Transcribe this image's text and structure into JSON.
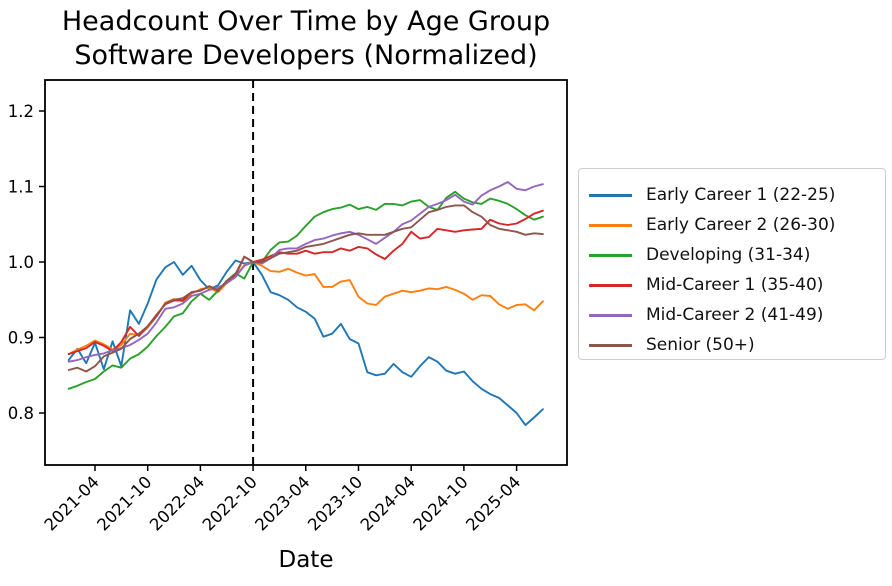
{
  "title": {
    "line1": "Headcount Over Time by Age Group",
    "line2": "Software Developers (Normalized)"
  },
  "chart_data": {
    "type": "line",
    "title": "Headcount Over Time by Age Group\nSoftware Developers (Normalized)",
    "xlabel": "Date",
    "ylabel": "",
    "grid": false,
    "legend_position": "right",
    "ylim": [
      0.73,
      1.24
    ],
    "y_ticks": [
      0.8,
      0.9,
      1.0,
      1.1,
      1.2
    ],
    "x_tick_labels": [
      "2021-04",
      "2021-10",
      "2022-04",
      "2022-10",
      "2023-04",
      "2023-10",
      "2024-04",
      "2024-10",
      "2025-04"
    ],
    "annotations": [
      {
        "type": "vline",
        "x": "2022-10",
        "style": "dashed",
        "color": "#000000",
        "meaning": "normalization point (value = 1.0)"
      }
    ],
    "x": [
      "2021-01",
      "2021-02",
      "2021-03",
      "2021-04",
      "2021-05",
      "2021-06",
      "2021-07",
      "2021-08",
      "2021-09",
      "2021-10",
      "2021-11",
      "2021-12",
      "2022-01",
      "2022-02",
      "2022-03",
      "2022-04",
      "2022-05",
      "2022-06",
      "2022-07",
      "2022-08",
      "2022-09",
      "2022-10",
      "2022-11",
      "2022-12",
      "2023-01",
      "2023-02",
      "2023-03",
      "2023-04",
      "2023-05",
      "2023-06",
      "2023-07",
      "2023-08",
      "2023-09",
      "2023-10",
      "2023-11",
      "2023-12",
      "2024-01",
      "2024-02",
      "2024-03",
      "2024-04",
      "2024-05",
      "2024-06",
      "2024-07",
      "2024-08",
      "2024-09",
      "2024-10",
      "2024-11",
      "2024-12",
      "2025-01",
      "2025-02",
      "2025-03",
      "2025-04",
      "2025-05",
      "2025-06",
      "2025-07"
    ],
    "series": [
      {
        "name": "Early Career 1 (22-25)",
        "color": "#1f77b4",
        "values": [
          0.87,
          0.885,
          0.866,
          0.893,
          0.858,
          0.895,
          0.862,
          0.936,
          0.918,
          0.945,
          0.977,
          0.993,
          1.0,
          0.983,
          0.995,
          0.976,
          0.964,
          0.969,
          0.987,
          1.002,
          0.998,
          1.0,
          0.983,
          0.96,
          0.956,
          0.95,
          0.94,
          0.934,
          0.925,
          0.901,
          0.905,
          0.918,
          0.898,
          0.892,
          0.854,
          0.85,
          0.852,
          0.865,
          0.854,
          0.848,
          0.862,
          0.874,
          0.868,
          0.856,
          0.852,
          0.855,
          0.842,
          0.832,
          0.825,
          0.82,
          0.81,
          0.8,
          0.784,
          0.794,
          0.805
        ]
      },
      {
        "name": "Early Career 2 (26-30)",
        "color": "#ff7f0e",
        "values": [
          0.878,
          0.884,
          0.889,
          0.896,
          0.891,
          0.884,
          0.89,
          0.905,
          0.903,
          0.913,
          0.928,
          0.946,
          0.951,
          0.948,
          0.958,
          0.964,
          0.966,
          0.96,
          0.972,
          0.98,
          0.996,
          1.0,
          0.995,
          0.988,
          0.987,
          0.991,
          0.986,
          0.982,
          0.984,
          0.967,
          0.967,
          0.974,
          0.976,
          0.954,
          0.945,
          0.943,
          0.954,
          0.958,
          0.962,
          0.96,
          0.962,
          0.965,
          0.964,
          0.967,
          0.963,
          0.958,
          0.95,
          0.956,
          0.955,
          0.944,
          0.938,
          0.943,
          0.944,
          0.936,
          0.948
        ]
      },
      {
        "name": "Developing (31-34)",
        "color": "#2ca02c",
        "values": [
          0.832,
          0.836,
          0.841,
          0.845,
          0.855,
          0.863,
          0.86,
          0.872,
          0.878,
          0.888,
          0.902,
          0.914,
          0.928,
          0.932,
          0.948,
          0.958,
          0.95,
          0.962,
          0.975,
          0.985,
          0.978,
          1.0,
          1.0,
          1.016,
          1.026,
          1.027,
          1.035,
          1.048,
          1.06,
          1.066,
          1.07,
          1.072,
          1.076,
          1.07,
          1.073,
          1.069,
          1.077,
          1.077,
          1.075,
          1.08,
          1.082,
          1.073,
          1.069,
          1.085,
          1.093,
          1.084,
          1.079,
          1.077,
          1.084,
          1.081,
          1.077,
          1.07,
          1.062,
          1.056,
          1.06
        ]
      },
      {
        "name": "Mid-Career 1 (35-40)",
        "color": "#d62728",
        "values": [
          0.878,
          0.882,
          0.886,
          0.894,
          0.889,
          0.882,
          0.894,
          0.914,
          0.902,
          0.915,
          0.93,
          0.944,
          0.949,
          0.949,
          0.96,
          0.962,
          0.968,
          0.963,
          0.974,
          0.982,
          1.007,
          1.0,
          1.003,
          1.008,
          1.013,
          1.011,
          1.011,
          1.015,
          1.011,
          1.013,
          1.013,
          1.018,
          1.015,
          1.02,
          1.018,
          1.01,
          1.004,
          1.015,
          1.024,
          1.04,
          1.031,
          1.033,
          1.044,
          1.042,
          1.04,
          1.042,
          1.043,
          1.044,
          1.056,
          1.051,
          1.049,
          1.051,
          1.057,
          1.064,
          1.068
        ]
      },
      {
        "name": "Mid-Career 2 (41-49)",
        "color": "#9467bd",
        "values": [
          0.868,
          0.87,
          0.874,
          0.877,
          0.879,
          0.883,
          0.886,
          0.89,
          0.897,
          0.905,
          0.92,
          0.938,
          0.94,
          0.945,
          0.955,
          0.958,
          0.963,
          0.966,
          0.972,
          0.98,
          0.995,
          1.0,
          0.998,
          1.005,
          1.016,
          1.018,
          1.018,
          1.024,
          1.029,
          1.031,
          1.035,
          1.038,
          1.04,
          1.036,
          1.03,
          1.024,
          1.032,
          1.04,
          1.05,
          1.055,
          1.064,
          1.073,
          1.077,
          1.082,
          1.089,
          1.08,
          1.076,
          1.088,
          1.095,
          1.1,
          1.106,
          1.097,
          1.095,
          1.1,
          1.103
        ]
      },
      {
        "name": "Senior (50+)",
        "color": "#8c564b",
        "values": [
          0.857,
          0.86,
          0.855,
          0.862,
          0.875,
          0.88,
          0.885,
          0.898,
          0.905,
          0.915,
          0.928,
          0.945,
          0.95,
          0.952,
          0.96,
          0.962,
          0.968,
          0.962,
          0.975,
          0.984,
          1.007,
          1.0,
          1.0,
          1.005,
          1.011,
          1.013,
          1.015,
          1.02,
          1.022,
          1.024,
          1.028,
          1.032,
          1.036,
          1.038,
          1.036,
          1.036,
          1.036,
          1.04,
          1.044,
          1.046,
          1.056,
          1.066,
          1.069,
          1.073,
          1.075,
          1.075,
          1.066,
          1.06,
          1.049,
          1.044,
          1.042,
          1.04,
          1.036,
          1.038,
          1.037
        ]
      }
    ]
  }
}
